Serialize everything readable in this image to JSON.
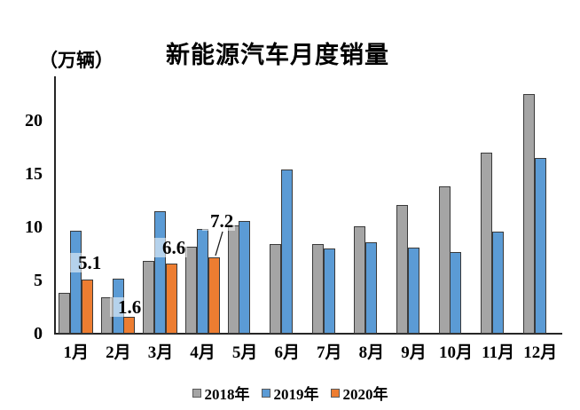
{
  "chart_data": {
    "type": "bar",
    "title": "新能源汽车月度销量",
    "ylabel": "（万辆）",
    "xlabel": "",
    "categories": [
      "1月",
      "2月",
      "3月",
      "4月",
      "5月",
      "6月",
      "7月",
      "8月",
      "9月",
      "10月",
      "11月",
      "12月"
    ],
    "series": [
      {
        "name": "2018年",
        "color": "#A5A5A5",
        "values": [
          3.8,
          3.4,
          6.8,
          8.2,
          10.2,
          8.4,
          8.4,
          10.1,
          12.1,
          13.8,
          17.0,
          22.5
        ]
      },
      {
        "name": "2019年",
        "color": "#5B9BD5",
        "values": [
          9.7,
          5.2,
          11.5,
          9.8,
          10.6,
          15.4,
          8.0,
          8.6,
          8.1,
          7.7,
          9.6,
          16.5
        ]
      },
      {
        "name": "2020年",
        "color": "#ED7D31",
        "values": [
          5.1,
          1.6,
          6.6,
          7.2,
          null,
          null,
          null,
          null,
          null,
          null,
          null,
          null
        ]
      }
    ],
    "data_labels": {
      "series": "2020年",
      "values": [
        "5.1",
        "1.6",
        "6.6",
        "7.2"
      ]
    },
    "y_ticks": [
      0,
      5,
      10,
      15,
      20
    ],
    "ylim": [
      0,
      24
    ],
    "grid": false,
    "legend_position": "bottom",
    "axis_color": "#262626",
    "bar_border_color": "#3a3a3a"
  }
}
